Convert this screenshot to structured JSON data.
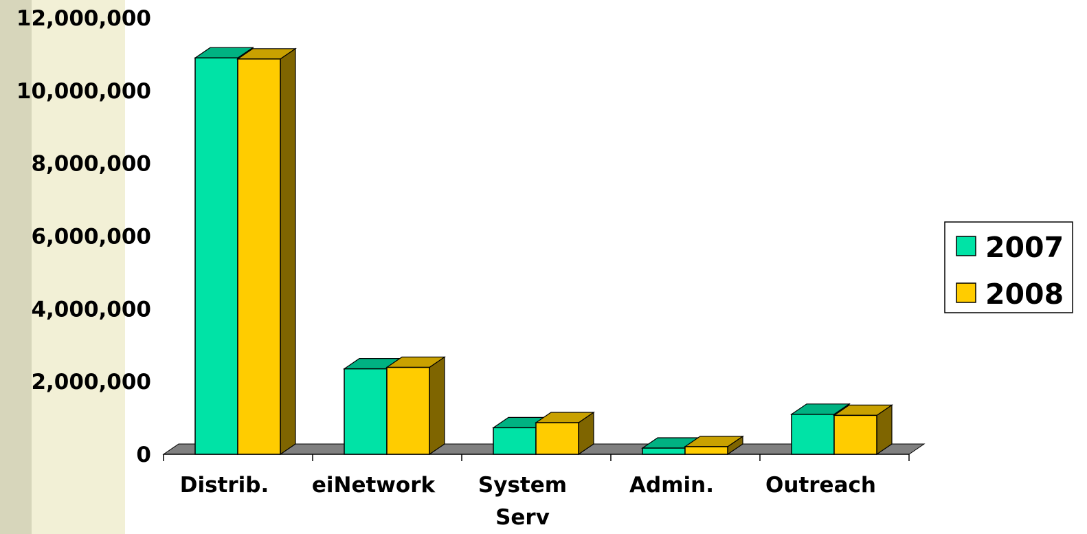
{
  "chart_data": {
    "type": "bar",
    "title": "",
    "xlabel": "",
    "ylabel": "",
    "categories": [
      [
        "Distrib."
      ],
      [
        "eiNetwork"
      ],
      [
        "System",
        "Serv"
      ],
      [
        "Admin."
      ],
      [
        "Outreach"
      ]
    ],
    "series": [
      {
        "name": "2007",
        "values": [
          10900000,
          2350000,
          730000,
          170000,
          1100000
        ]
      },
      {
        "name": "2008",
        "values": [
          10870000,
          2390000,
          870000,
          210000,
          1070000
        ]
      }
    ],
    "ylim": [
      0,
      12000000
    ],
    "yticks": [
      "0",
      "2,000,000",
      "4,000,000",
      "6,000,000",
      "8,000,000",
      "10,000,000",
      "12,000,000"
    ],
    "grid": false,
    "legend_position": "right",
    "three_d": true,
    "colors": {
      "series_2007": {
        "front": "#00e3a6",
        "top": "#00b282",
        "side": "#009970"
      },
      "series_2008": {
        "front": "#ffcc00",
        "top": "#c9a100",
        "side": "#7f6500"
      },
      "floor": "#808080",
      "page_left_band": "#d7d6bb",
      "page_strip": "#f2f0d6"
    }
  }
}
